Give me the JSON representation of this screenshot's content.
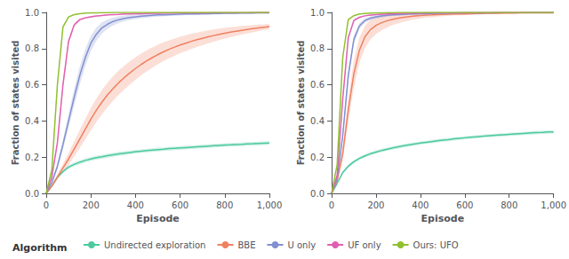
{
  "chart_data": [
    {
      "type": "line",
      "xlabel": "Episode",
      "ylabel": "Fraction of states visited",
      "annotations": [
        "Algorithm"
      ],
      "legend": "bottom",
      "grid": false,
      "xlim": [
        0,
        1000
      ],
      "ylim": [
        0,
        1
      ],
      "xticks": [
        0,
        200,
        400,
        600,
        800,
        {
          "value": 1000,
          "label": "1,000"
        }
      ],
      "yticks": [
        {
          "value": 0,
          "label": "0.0"
        },
        0.2,
        0.4,
        0.6,
        0.8,
        {
          "value": 1,
          "label": "1.0"
        }
      ],
      "x": [
        0,
        25,
        50,
        75,
        100,
        125,
        150,
        175,
        200,
        225,
        250,
        275,
        300,
        325,
        350,
        375,
        400,
        425,
        450,
        475,
        500,
        525,
        550,
        575,
        600,
        625,
        650,
        675,
        700,
        725,
        750,
        775,
        800,
        825,
        850,
        875,
        900,
        925,
        950,
        975,
        1000
      ],
      "series": [
        {
          "name": "Undirected exploration",
          "color": "#4cc9a0",
          "values": [
            0.0,
            0.04,
            0.09,
            0.12,
            0.145,
            0.16,
            0.172,
            0.182,
            0.19,
            0.197,
            0.202,
            0.208,
            0.213,
            0.218,
            0.222,
            0.226,
            0.23,
            0.233,
            0.236,
            0.239,
            0.242,
            0.244,
            0.247,
            0.249,
            0.251,
            0.253,
            0.255,
            0.257,
            0.259,
            0.261,
            0.263,
            0.265,
            0.267,
            0.268,
            0.27,
            0.271,
            0.273,
            0.274,
            0.276,
            0.277,
            0.278
          ],
          "std": [
            0.0,
            0.004,
            0.007,
            0.009,
            0.01,
            0.011,
            0.011,
            0.011,
            0.011,
            0.011,
            0.011,
            0.011,
            0.011,
            0.011,
            0.011,
            0.01,
            0.01,
            0.01,
            0.01,
            0.01,
            0.01,
            0.01,
            0.01,
            0.01,
            0.01,
            0.01,
            0.01,
            0.01,
            0.01,
            0.01,
            0.01,
            0.01,
            0.01,
            0.01,
            0.01,
            0.01,
            0.01,
            0.01,
            0.01,
            0.01,
            0.01
          ]
        },
        {
          "name": "BBE",
          "color": "#f08060",
          "values": [
            0.0,
            0.04,
            0.09,
            0.14,
            0.19,
            0.245,
            0.3,
            0.355,
            0.41,
            0.46,
            0.505,
            0.545,
            0.58,
            0.612,
            0.64,
            0.666,
            0.69,
            0.712,
            0.732,
            0.75,
            0.767,
            0.782,
            0.796,
            0.808,
            0.82,
            0.83,
            0.84,
            0.849,
            0.857,
            0.865,
            0.872,
            0.879,
            0.885,
            0.891,
            0.896,
            0.901,
            0.906,
            0.91,
            0.914,
            0.918,
            0.922
          ],
          "std": [
            0.0,
            0.008,
            0.016,
            0.024,
            0.033,
            0.042,
            0.05,
            0.057,
            0.062,
            0.065,
            0.067,
            0.068,
            0.068,
            0.067,
            0.066,
            0.064,
            0.062,
            0.06,
            0.058,
            0.056,
            0.054,
            0.052,
            0.05,
            0.048,
            0.046,
            0.044,
            0.042,
            0.04,
            0.038,
            0.036,
            0.034,
            0.032,
            0.03,
            0.028,
            0.026,
            0.024,
            0.022,
            0.02,
            0.018,
            0.016,
            0.015
          ]
        },
        {
          "name": "U only",
          "color": "#8090d0",
          "values": [
            0.0,
            0.06,
            0.15,
            0.27,
            0.4,
            0.53,
            0.65,
            0.75,
            0.83,
            0.88,
            0.915,
            0.935,
            0.95,
            0.96,
            0.967,
            0.972,
            0.976,
            0.979,
            0.982,
            0.984,
            0.986,
            0.987,
            0.988,
            0.989,
            0.99,
            0.991,
            0.992,
            0.992,
            0.993,
            0.993,
            0.994,
            0.994,
            0.995,
            0.995,
            0.995,
            0.996,
            0.996,
            0.996,
            0.997,
            0.997,
            0.997
          ],
          "std": [
            0.0,
            0.008,
            0.018,
            0.028,
            0.038,
            0.047,
            0.05,
            0.048,
            0.043,
            0.037,
            0.031,
            0.026,
            0.022,
            0.019,
            0.016,
            0.014,
            0.013,
            0.012,
            0.011,
            0.01,
            0.009,
            0.008,
            0.008,
            0.007,
            0.007,
            0.006,
            0.006,
            0.006,
            0.005,
            0.005,
            0.005,
            0.005,
            0.004,
            0.004,
            0.004,
            0.004,
            0.004,
            0.003,
            0.003,
            0.003,
            0.003
          ]
        },
        {
          "name": "UF only",
          "color": "#e060b0",
          "values": [
            0.0,
            0.09,
            0.28,
            0.6,
            0.84,
            0.93,
            0.96,
            0.97,
            0.976,
            0.98,
            0.983,
            0.986,
            0.988,
            0.989,
            0.991,
            0.992,
            0.993,
            0.993,
            0.994,
            0.995,
            0.995,
            0.996,
            0.996,
            0.997,
            0.997,
            0.997,
            0.998,
            0.998,
            0.998,
            0.998,
            0.999,
            0.999,
            0.999,
            0.999,
            0.999,
            0.999,
            0.999,
            1.0,
            1.0,
            1.0,
            1.0
          ],
          "std": [
            0.0,
            0.005,
            0.012,
            0.02,
            0.015,
            0.01,
            0.007,
            0.005,
            0.004,
            0.004,
            0.003,
            0.003,
            0.002,
            0.002,
            0.002,
            0.002,
            0.002,
            0.001,
            0.001,
            0.001,
            0.001,
            0.001,
            0.001,
            0.001,
            0.001,
            0.001,
            0.001,
            0.001,
            0.001,
            0.001,
            0.001,
            0.001,
            0.001,
            0.0,
            0.0,
            0.0,
            0.0,
            0.0,
            0.0,
            0.0,
            0.0
          ]
        },
        {
          "name": "Ours: UFO",
          "color": "#90c030",
          "values": [
            0.0,
            0.13,
            0.6,
            0.92,
            0.975,
            0.988,
            0.993,
            0.996,
            0.997,
            0.998,
            0.999,
            0.999,
            1.0,
            1.0,
            1.0,
            1.0,
            1.0,
            1.0,
            1.0,
            1.0,
            1.0,
            1.0,
            1.0,
            1.0,
            1.0,
            1.0,
            1.0,
            1.0,
            1.0,
            1.0,
            1.0,
            1.0,
            1.0,
            1.0,
            1.0,
            1.0,
            1.0,
            1.0,
            1.0,
            1.0,
            1.0
          ],
          "std": [
            0.0,
            0.003,
            0.006,
            0.004,
            0.002,
            0.001,
            0.001,
            0.001,
            0.001,
            0.0,
            0.0,
            0.0,
            0.0,
            0.0,
            0.0,
            0.0,
            0.0,
            0.0,
            0.0,
            0.0,
            0.0,
            0.0,
            0.0,
            0.0,
            0.0,
            0.0,
            0.0,
            0.0,
            0.0,
            0.0,
            0.0,
            0.0,
            0.0,
            0.0,
            0.0,
            0.0,
            0.0,
            0.0,
            0.0,
            0.0,
            0.0
          ]
        }
      ]
    },
    {
      "type": "line",
      "xlabel": "Episode",
      "ylabel": "Fraction of states visited",
      "grid": false,
      "xlim": [
        0,
        1000
      ],
      "ylim": [
        0,
        1
      ],
      "xticks": [
        0,
        200,
        400,
        600,
        800,
        {
          "value": 1000,
          "label": "1,000"
        }
      ],
      "yticks": [
        {
          "value": 0,
          "label": "0.0"
        },
        0.2,
        0.4,
        0.6,
        0.8,
        {
          "value": 1,
          "label": "1.0"
        }
      ],
      "x": [
        0,
        25,
        50,
        75,
        100,
        125,
        150,
        175,
        200,
        225,
        250,
        275,
        300,
        325,
        350,
        375,
        400,
        425,
        450,
        475,
        500,
        525,
        550,
        575,
        600,
        625,
        650,
        675,
        700,
        725,
        750,
        775,
        800,
        825,
        850,
        875,
        900,
        925,
        950,
        975,
        1000
      ],
      "series": [
        {
          "name": "Undirected exploration",
          "color": "#4cc9a0",
          "values": [
            0.0,
            0.055,
            0.115,
            0.15,
            0.175,
            0.193,
            0.207,
            0.219,
            0.228,
            0.237,
            0.244,
            0.251,
            0.257,
            0.263,
            0.268,
            0.273,
            0.278,
            0.282,
            0.286,
            0.29,
            0.294,
            0.297,
            0.301,
            0.304,
            0.307,
            0.31,
            0.312,
            0.315,
            0.318,
            0.32,
            0.322,
            0.324,
            0.326,
            0.328,
            0.33,
            0.332,
            0.334,
            0.336,
            0.337,
            0.339,
            0.34
          ],
          "std": [
            0.0,
            0.004,
            0.007,
            0.009,
            0.009,
            0.009,
            0.009,
            0.009,
            0.009,
            0.009,
            0.009,
            0.009,
            0.009,
            0.009,
            0.009,
            0.009,
            0.009,
            0.009,
            0.009,
            0.009,
            0.009,
            0.009,
            0.009,
            0.009,
            0.009,
            0.009,
            0.009,
            0.009,
            0.009,
            0.009,
            0.009,
            0.009,
            0.009,
            0.009,
            0.009,
            0.009,
            0.009,
            0.009,
            0.009,
            0.009,
            0.009
          ]
        },
        {
          "name": "BBE",
          "color": "#f08060",
          "values": [
            0.0,
            0.07,
            0.22,
            0.46,
            0.66,
            0.79,
            0.865,
            0.905,
            0.928,
            0.943,
            0.954,
            0.962,
            0.968,
            0.973,
            0.977,
            0.98,
            0.983,
            0.985,
            0.986,
            0.988,
            0.989,
            0.99,
            0.991,
            0.992,
            0.992,
            0.993,
            0.994,
            0.994,
            0.995,
            0.995,
            0.995,
            0.996,
            0.996,
            0.996,
            0.997,
            0.997,
            0.997,
            0.997,
            0.998,
            0.998,
            0.998
          ],
          "std": [
            0.0,
            0.013,
            0.038,
            0.068,
            0.075,
            0.07,
            0.062,
            0.055,
            0.048,
            0.042,
            0.037,
            0.032,
            0.028,
            0.024,
            0.021,
            0.018,
            0.016,
            0.014,
            0.013,
            0.011,
            0.01,
            0.009,
            0.008,
            0.008,
            0.007,
            0.006,
            0.006,
            0.005,
            0.005,
            0.004,
            0.004,
            0.004,
            0.003,
            0.003,
            0.003,
            0.003,
            0.002,
            0.002,
            0.002,
            0.002,
            0.002
          ]
        },
        {
          "name": "U only",
          "color": "#8090d0",
          "values": [
            0.0,
            0.08,
            0.32,
            0.65,
            0.85,
            0.925,
            0.955,
            0.968,
            0.975,
            0.98,
            0.984,
            0.986,
            0.988,
            0.989,
            0.991,
            0.992,
            0.993,
            0.993,
            0.994,
            0.995,
            0.995,
            0.996,
            0.996,
            0.997,
            0.997,
            0.997,
            0.998,
            0.998,
            0.998,
            0.998,
            0.999,
            0.999,
            0.999,
            0.999,
            0.999,
            0.999,
            1.0,
            1.0,
            1.0,
            1.0,
            1.0
          ],
          "std": [
            0.0,
            0.007,
            0.02,
            0.028,
            0.023,
            0.016,
            0.012,
            0.01,
            0.009,
            0.008,
            0.007,
            0.006,
            0.005,
            0.005,
            0.004,
            0.004,
            0.003,
            0.003,
            0.003,
            0.002,
            0.002,
            0.002,
            0.002,
            0.002,
            0.002,
            0.001,
            0.001,
            0.001,
            0.001,
            0.001,
            0.001,
            0.001,
            0.001,
            0.001,
            0.001,
            0.001,
            0.0,
            0.0,
            0.0,
            0.0,
            0.0
          ]
        },
        {
          "name": "UF only",
          "color": "#e060b0",
          "values": [
            0.0,
            0.1,
            0.52,
            0.86,
            0.955,
            0.973,
            0.981,
            0.985,
            0.988,
            0.99,
            0.991,
            0.993,
            0.994,
            0.995,
            0.995,
            0.996,
            0.996,
            0.997,
            0.997,
            0.997,
            0.998,
            0.998,
            0.998,
            0.998,
            0.999,
            0.999,
            0.999,
            0.999,
            0.999,
            1.0,
            1.0,
            1.0,
            1.0,
            1.0,
            1.0,
            1.0,
            1.0,
            1.0,
            1.0,
            1.0,
            1.0
          ],
          "std": [
            0.0,
            0.005,
            0.01,
            0.009,
            0.006,
            0.004,
            0.003,
            0.003,
            0.002,
            0.002,
            0.002,
            0.001,
            0.001,
            0.001,
            0.001,
            0.001,
            0.001,
            0.001,
            0.001,
            0.001,
            0.001,
            0.001,
            0.001,
            0.0,
            0.0,
            0.0,
            0.0,
            0.0,
            0.0,
            0.0,
            0.0,
            0.0,
            0.0,
            0.0,
            0.0,
            0.0,
            0.0,
            0.0,
            0.0,
            0.0,
            0.0
          ]
        },
        {
          "name": "Ours: UFO",
          "color": "#90c030",
          "values": [
            0.0,
            0.16,
            0.75,
            0.96,
            0.982,
            0.991,
            0.994,
            0.996,
            0.997,
            0.998,
            0.999,
            0.999,
            1.0,
            1.0,
            1.0,
            1.0,
            1.0,
            1.0,
            1.0,
            1.0,
            1.0,
            1.0,
            1.0,
            1.0,
            1.0,
            1.0,
            1.0,
            1.0,
            1.0,
            1.0,
            1.0,
            1.0,
            1.0,
            1.0,
            1.0,
            1.0,
            1.0,
            1.0,
            1.0,
            1.0,
            1.0
          ],
          "std": [
            0.0,
            0.002,
            0.004,
            0.003,
            0.002,
            0.001,
            0.001,
            0.0,
            0.0,
            0.0,
            0.0,
            0.0,
            0.0,
            0.0,
            0.0,
            0.0,
            0.0,
            0.0,
            0.0,
            0.0,
            0.0,
            0.0,
            0.0,
            0.0,
            0.0,
            0.0,
            0.0,
            0.0,
            0.0,
            0.0,
            0.0,
            0.0,
            0.0,
            0.0,
            0.0,
            0.0,
            0.0,
            0.0,
            0.0,
            0.0,
            0.0
          ]
        }
      ]
    }
  ]
}
